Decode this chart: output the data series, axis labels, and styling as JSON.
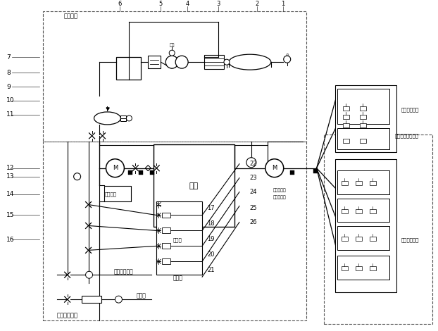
{
  "bg_color": "#ffffff",
  "text_qixitong": "气吸系统",
  "text_gaoya": "高压水路系统",
  "text_dianya": "低压啦雾安全系统",
  "text_saoshui": "扫盘安全啦水",
  "text_penshui": "雾啦安全啦水",
  "text_shuixiang": "水筱",
  "text_zhupenshui": "主喷水",
  "text_huishuiwenya": "回水稳压",
  "text_huiche": "洗车機",
  "text_fengdongguan": "封动管道清洗",
  "text_liudaozhukong": "流道主控阀",
  "text_zuozhikongkoushui": "左制控口水",
  "text_dashiji": "大气",
  "labels_left": [
    "7",
    "8",
    "9",
    "10",
    "11",
    "12",
    "13",
    "14",
    "15",
    "16"
  ],
  "labels_top": [
    "1",
    "2",
    "3",
    "4",
    "5",
    "6"
  ],
  "labels_mid": [
    "17",
    "18",
    "19",
    "20",
    "21"
  ],
  "labels_right": [
    "22",
    "23",
    "24",
    "25",
    "26"
  ]
}
